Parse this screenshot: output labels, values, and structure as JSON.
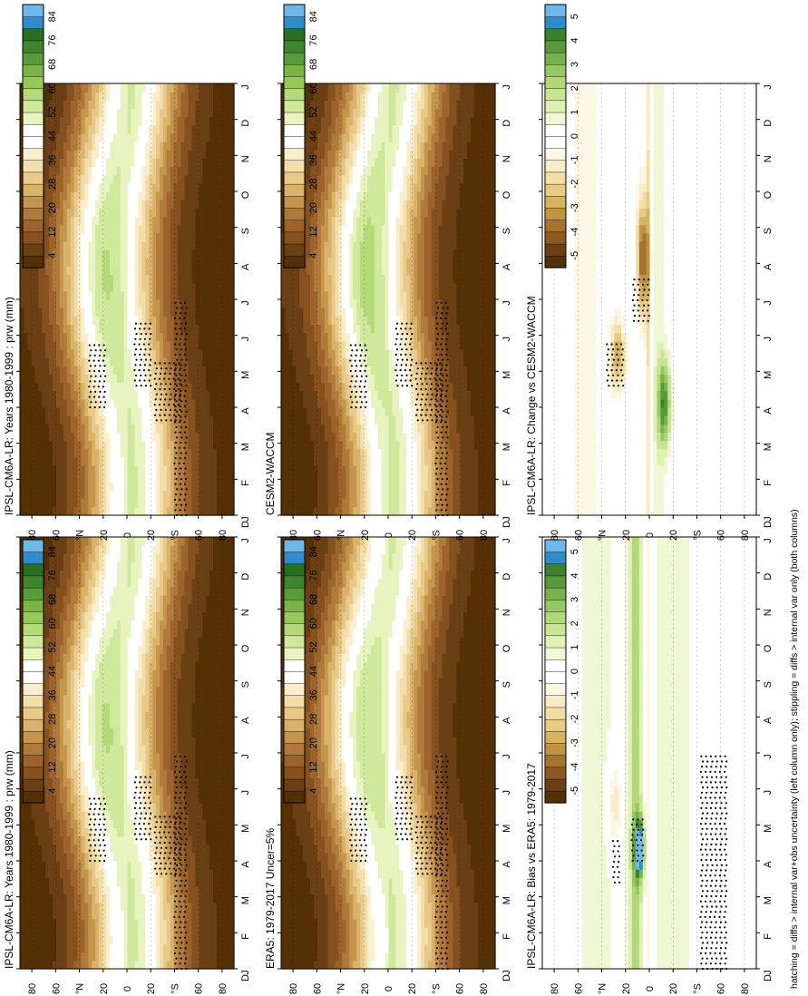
{
  "figure": {
    "caption": "hatching = diffs > internal var+obs uncertainty (left column only); stippling = diffs > internal var only (both columns)"
  },
  "scales": {
    "prw": {
      "colors": [
        "#543005",
        "#6b3f14",
        "#84511f",
        "#9c642c",
        "#b07a3c",
        "#c4954c",
        "#d9b26b",
        "#e8c98a",
        "#f2deaa",
        "#f9efcf",
        "#ffffff",
        "#ffffff",
        "#e8f4c0",
        "#cfe89b",
        "#b4da78",
        "#97c95a",
        "#78b446",
        "#589c39",
        "#3f852e",
        "#2a6e22",
        "#2e8ccc",
        "#6cb8e8"
      ],
      "labels": [
        "4",
        "12",
        "20",
        "28",
        "36",
        "44",
        "52",
        "60",
        "68",
        "76",
        "84"
      ]
    },
    "diff": {
      "colors": [
        "#543005",
        "#6b3f14",
        "#8a5a22",
        "#a6742e",
        "#c19442",
        "#d6b35f",
        "#e6cb80",
        "#f0dea2",
        "#f7ecc6",
        "#fcf7e4",
        "#ffffff",
        "#ffffff",
        "#eff7d4",
        "#dff0b3",
        "#c9e594",
        "#b1d878",
        "#95c862",
        "#77b24c",
        "#589a3b",
        "#3c812d",
        "#2e8ccc",
        "#6cb8e8"
      ],
      "labels": [
        "-5",
        "-4",
        "-3",
        "-2",
        "-1",
        "0",
        "1",
        "2",
        "3",
        "4",
        "5"
      ]
    }
  },
  "axes": {
    "months": [
      "J",
      "F",
      "M",
      "A",
      "M",
      "J",
      "J",
      "A",
      "S",
      "O",
      "N",
      "D",
      "J"
    ],
    "lat_ticks": [
      "80",
      "60",
      "°N",
      "20",
      "0",
      "20",
      "°S",
      "60",
      "80"
    ],
    "corner": "D"
  },
  "chart_data": [
    {
      "type": "heatmap",
      "panel": "row1-left",
      "title": "IPSL-CM6A-LR: Years 1980-1999 : prw (mm)",
      "x": "month (J–J)",
      "y": "latitude 90S–90N",
      "scale": "prw",
      "kind": "clim"
    },
    {
      "type": "heatmap",
      "panel": "row1-right",
      "title": "IPSL-CM6A-LR: Years 1980-1999 : prw (mm)",
      "x": "month (J–J)",
      "y": "latitude 90S–90N",
      "scale": "prw",
      "kind": "clim"
    },
    {
      "type": "heatmap",
      "panel": "row2-left",
      "title": "ERA5: 1979-2017 Uncer=5%",
      "x": "month (J–J)",
      "y": "latitude 90S–90N",
      "scale": "prw",
      "kind": "clim"
    },
    {
      "type": "heatmap",
      "panel": "row2-right",
      "title": "CESM2-WACCM",
      "x": "month (J–J)",
      "y": "latitude 90S–90N",
      "scale": "prw",
      "kind": "clim"
    },
    {
      "type": "heatmap",
      "panel": "row3-left",
      "title": "IPSL-CM6A-LR: Bias vs ERA5: 1979-2017",
      "x": "month (J–J)",
      "y": "latitude 90S–90N",
      "scale": "diff",
      "kind": "bias"
    },
    {
      "type": "heatmap",
      "panel": "row3-right",
      "title": "IPSL-CM6A-LR: Change vs CESM2-WACCM",
      "x": "month (J–J)",
      "y": "latitude 90S–90N",
      "scale": "diff",
      "kind": "change"
    }
  ]
}
